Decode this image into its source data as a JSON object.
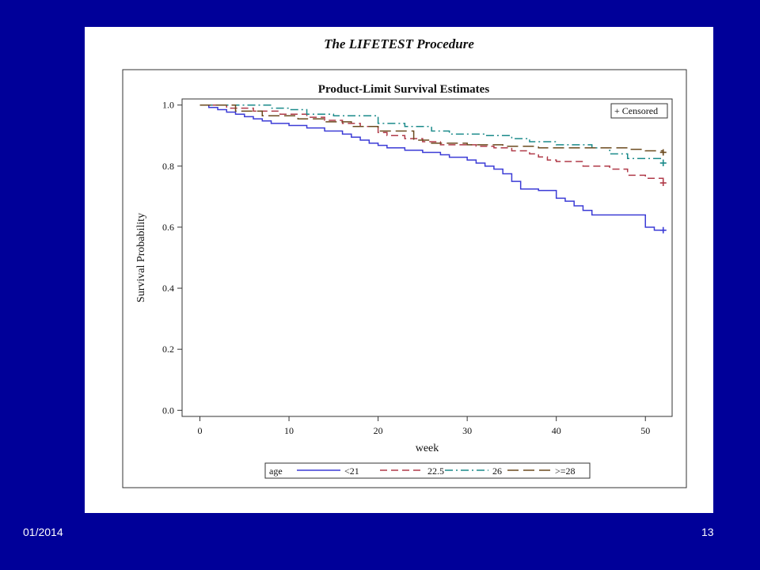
{
  "slide": {
    "procedure_title": "The LIFETEST Procedure",
    "footer_date": "01/2014",
    "page_number": "13"
  },
  "chart_data": {
    "type": "line",
    "step": true,
    "title": "Product-Limit Survival Estimates",
    "xlabel": "week",
    "ylabel": "Survival Probability",
    "xlim": [
      -2,
      53
    ],
    "ylim": [
      -0.02,
      1.02
    ],
    "xticks": [
      "0",
      "10",
      "20",
      "30",
      "40",
      "50"
    ],
    "yticks": [
      "0.0",
      "0.2",
      "0.4",
      "0.6",
      "0.8",
      "1.0"
    ],
    "censored_label": "+ Censored",
    "legend_title": "age",
    "legend_position": "bottom",
    "series": [
      {
        "name": "<21",
        "color": "#3b3bd6",
        "dash": "solid",
        "x": [
          0,
          1,
          2,
          3,
          4,
          5,
          6,
          7,
          8,
          10,
          12,
          14,
          16,
          17,
          18,
          19,
          20,
          21,
          23,
          25,
          27,
          28,
          30,
          31,
          32,
          33,
          34,
          35,
          36,
          38,
          40,
          41,
          42,
          43,
          44,
          46,
          50,
          51,
          52
        ],
        "y": [
          1.0,
          0.992,
          0.985,
          0.977,
          0.97,
          0.962,
          0.955,
          0.948,
          0.94,
          0.933,
          0.925,
          0.915,
          0.905,
          0.895,
          0.885,
          0.875,
          0.868,
          0.86,
          0.852,
          0.845,
          0.837,
          0.829,
          0.82,
          0.81,
          0.8,
          0.79,
          0.775,
          0.75,
          0.725,
          0.72,
          0.695,
          0.685,
          0.67,
          0.655,
          0.64,
          0.64,
          0.6,
          0.59,
          0.59
        ],
        "censor_x": [
          52
        ],
        "censor_y": [
          0.59
        ]
      },
      {
        "name": "22.5",
        "color": "#b03a48",
        "dash": "dashed",
        "x": [
          0,
          3,
          6,
          9,
          12,
          14,
          16,
          18,
          20,
          21,
          23,
          25,
          27,
          31,
          33,
          35,
          37,
          38,
          39,
          40,
          43,
          46,
          48,
          50,
          52
        ],
        "y": [
          1.0,
          0.99,
          0.98,
          0.97,
          0.96,
          0.95,
          0.94,
          0.93,
          0.91,
          0.9,
          0.89,
          0.88,
          0.87,
          0.865,
          0.86,
          0.85,
          0.84,
          0.83,
          0.82,
          0.815,
          0.8,
          0.79,
          0.77,
          0.76,
          0.745
        ],
        "censor_x": [
          52
        ],
        "censor_y": [
          0.745
        ]
      },
      {
        "name": "26",
        "color": "#1a8a8a",
        "dash": "dashdot",
        "x": [
          0,
          8,
          10,
          12,
          15,
          20,
          23,
          26,
          28,
          32,
          35,
          37,
          40,
          44,
          46,
          48,
          52
        ],
        "y": [
          1.0,
          0.99,
          0.985,
          0.97,
          0.965,
          0.94,
          0.93,
          0.915,
          0.905,
          0.9,
          0.89,
          0.88,
          0.87,
          0.86,
          0.84,
          0.825,
          0.81
        ],
        "censor_x": [
          52
        ],
        "censor_y": [
          0.81
        ]
      },
      {
        "name": ">=28",
        "color": "#6b4a1e",
        "dash": "longdash",
        "x": [
          0,
          4,
          7,
          11,
          14,
          17,
          20,
          24,
          26,
          30,
          34,
          38,
          42,
          48,
          50,
          52
        ],
        "y": [
          1.0,
          0.98,
          0.965,
          0.955,
          0.945,
          0.93,
          0.915,
          0.885,
          0.875,
          0.87,
          0.865,
          0.86,
          0.86,
          0.855,
          0.85,
          0.845
        ],
        "censor_x": [
          52
        ],
        "censor_y": [
          0.845
        ]
      }
    ]
  }
}
